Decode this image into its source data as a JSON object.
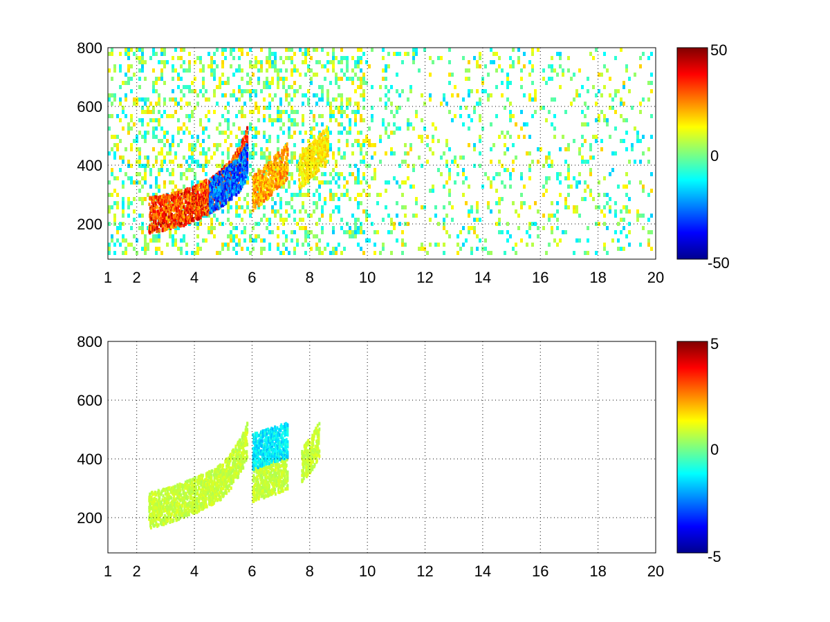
{
  "chart_data": [
    {
      "type": "heatmap",
      "title": "",
      "xlabel": "",
      "ylabel": "",
      "xlim": [
        1,
        20
      ],
      "ylim": [
        80,
        800
      ],
      "xticks": [
        "1",
        "2",
        "4",
        "6",
        "8",
        "10",
        "12",
        "14",
        "16",
        "18",
        "20"
      ],
      "yticks": [
        "200",
        "400",
        "600",
        "800"
      ],
      "grid": true,
      "colormap": "jet",
      "colorbar": {
        "clim": [
          -50,
          50
        ],
        "ticks": [
          "50",
          "0",
          "-50"
        ]
      },
      "series": [
        {
          "description_values": [
            {
              "x_range": [
                2.4,
                5.8
              ],
              "y_center_curve": [
                [
                  2.4,
                  235
                ],
                [
                  3.0,
                  245
                ],
                [
                  3.6,
                  260
                ],
                [
                  4.2,
                  285
                ],
                [
                  4.8,
                  320
                ],
                [
                  5.2,
                  360
                ],
                [
                  5.6,
                  420
                ],
                [
                  5.8,
                  480
                ]
              ],
              "value": 45
            },
            {
              "x_range": [
                4.5,
                5.8
              ],
              "y_center_curve": [
                [
                  4.5,
                  300
                ],
                [
                  5.0,
                  330
                ],
                [
                  5.5,
                  370
                ],
                [
                  5.8,
                  420
                ]
              ],
              "value": -40
            },
            {
              "x_range": [
                6.0,
                7.2
              ],
              "y_center_curve": [
                [
                  6.0,
                  310
                ],
                [
                  6.6,
                  360
                ],
                [
                  7.2,
                  420
                ]
              ],
              "value": 30
            },
            {
              "x_range": [
                7.6,
                8.6
              ],
              "y_center_curve": [
                [
                  7.6,
                  380
                ],
                [
                  8.1,
                  430
                ],
                [
                  8.6,
                  480
                ]
              ],
              "value": 20
            }
          ]
        }
      ]
    },
    {
      "type": "heatmap",
      "title": "",
      "xlabel": "",
      "ylabel": "",
      "xlim": [
        1,
        20
      ],
      "ylim": [
        80,
        800
      ],
      "xticks": [
        "1",
        "2",
        "4",
        "6",
        "8",
        "10",
        "12",
        "14",
        "16",
        "18",
        "20"
      ],
      "yticks": [
        "200",
        "400",
        "600",
        "800"
      ],
      "grid": true,
      "colormap": "jet",
      "colorbar": {
        "clim": [
          -5,
          5
        ],
        "ticks": [
          "5",
          "0",
          "-5"
        ]
      },
      "series": [
        {
          "description_values": [
            {
              "x_range": [
                2.4,
                5.8
              ],
              "y_center_curve": [
                [
                  2.4,
                  230
                ],
                [
                  3.0,
                  245
                ],
                [
                  3.6,
                  265
                ],
                [
                  4.2,
                  290
                ],
                [
                  4.8,
                  320
                ],
                [
                  5.2,
                  360
                ],
                [
                  5.6,
                  420
                ],
                [
                  5.8,
                  470
                ]
              ],
              "value": 1
            },
            {
              "x_range": [
                6.0,
                7.2
              ],
              "y_center_curve": [
                [
                  6.0,
                  320
                ],
                [
                  6.6,
                  340
                ],
                [
                  7.2,
                  360
                ]
              ],
              "value": 1
            },
            {
              "x_range": [
                6.0,
                7.2
              ],
              "y_center_curve": [
                [
                  6.0,
                  430
                ],
                [
                  6.6,
                  450
                ],
                [
                  7.2,
                  470
                ]
              ],
              "value": -2
            },
            {
              "x_range": [
                7.7,
                8.3
              ],
              "y_center_curve": [
                [
                  7.7,
                  380
                ],
                [
                  8.0,
                  420
                ],
                [
                  8.3,
                  470
                ]
              ],
              "value": 1
            }
          ]
        }
      ]
    }
  ]
}
